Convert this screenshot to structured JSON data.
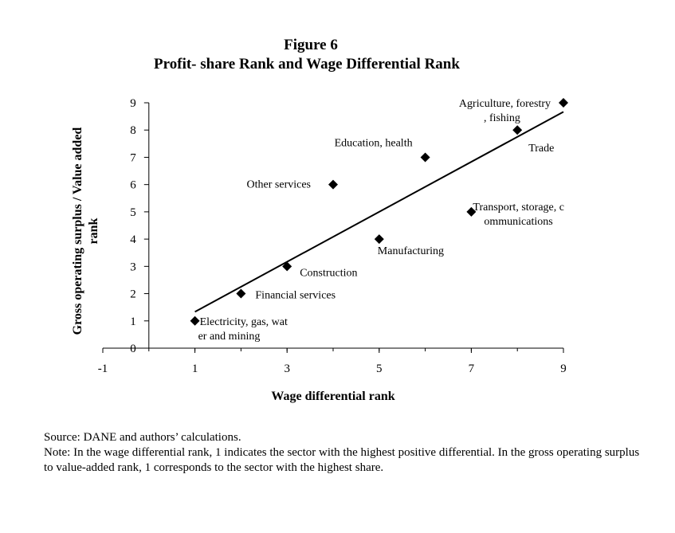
{
  "chart_data": {
    "type": "scatter",
    "title": "Figure 6",
    "subtitle": "Profit- share Rank and Wage Differential Rank",
    "xlabel": "Wage differential rank",
    "ylabel": "Gross operating surplus / Value added rank",
    "xlim": [
      -1,
      9
    ],
    "ylim": [
      0,
      9
    ],
    "x_ticks": [
      -1,
      1,
      3,
      5,
      7,
      9
    ],
    "y_ticks": [
      0,
      1,
      2,
      3,
      4,
      5,
      6,
      7,
      8,
      9
    ],
    "grid": false,
    "points": [
      {
        "label": "Electricity, gas, wat er and mining",
        "x": 1,
        "y": 1
      },
      {
        "label": "Financial services",
        "x": 2,
        "y": 2
      },
      {
        "label": "Construction",
        "x": 3,
        "y": 3
      },
      {
        "label": "Other services",
        "x": 4,
        "y": 6
      },
      {
        "label": "Manufacturing",
        "x": 5,
        "y": 4
      },
      {
        "label": "Education, health",
        "x": 6,
        "y": 7
      },
      {
        "label": "Transport, storage, c ommunications",
        "x": 7,
        "y": 5
      },
      {
        "label": "Trade",
        "x": 8,
        "y": 8
      },
      {
        "label": "Agriculture, forestry , fishing",
        "x": 9,
        "y": 9
      }
    ],
    "trendline": {
      "type": "linear",
      "x_range": [
        1,
        9
      ]
    },
    "marker_color": "#000000"
  },
  "notes": {
    "source": "Source: DANE and authors’ calculations.",
    "note": "Note: In the wage differential rank, 1 indicates the sector with the highest positive differential. In the gross operating surplus to value-added rank, 1 corresponds to the sector with the highest share."
  }
}
